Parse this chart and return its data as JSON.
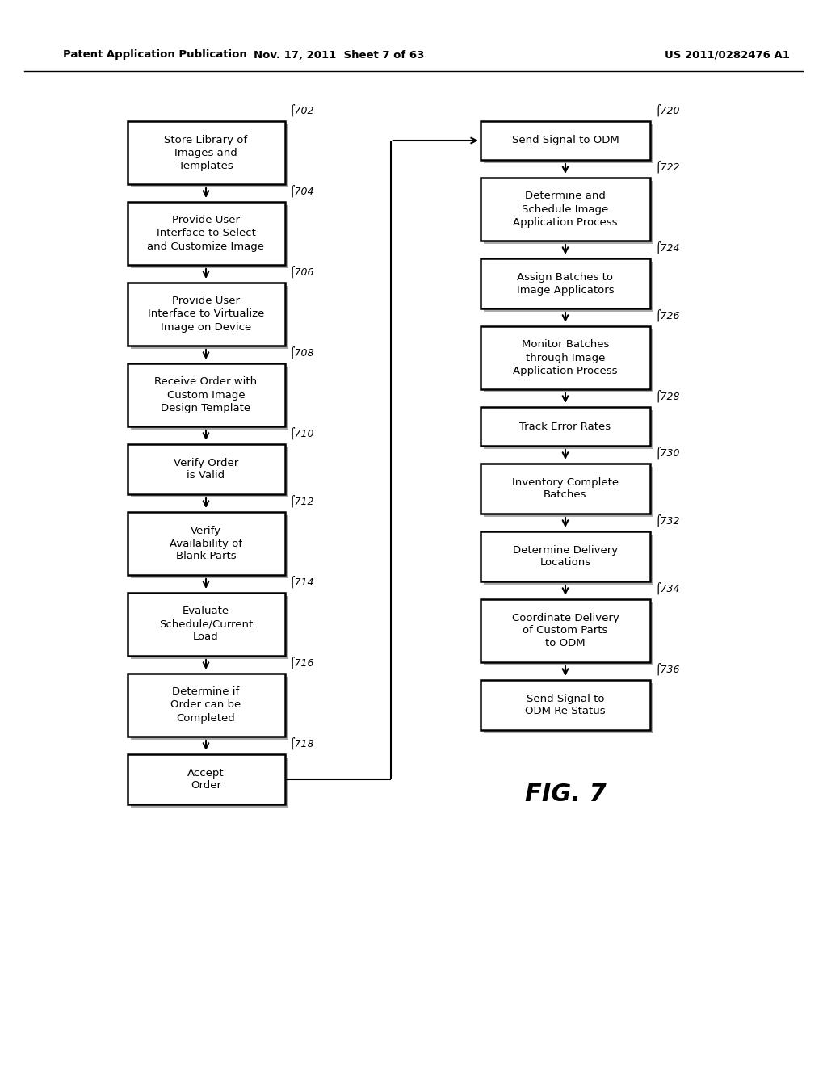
{
  "header_left": "Patent Application Publication",
  "header_mid": "Nov. 17, 2011  Sheet 7 of 63",
  "header_right": "US 2011/0282476 A1",
  "fig_label": "FIG. 7",
  "background": "#ffffff",
  "left_column": [
    {
      "id": "702",
      "text": "Store Library of\nImages and\nTemplates"
    },
    {
      "id": "704",
      "text": "Provide User\nInterface to Select\nand Customize Image"
    },
    {
      "id": "706",
      "text": "Provide User\nInterface to Virtualize\nImage on Device"
    },
    {
      "id": "708",
      "text": "Receive Order with\nCustom Image\nDesign Template"
    },
    {
      "id": "710",
      "text": "Verify Order\nis Valid"
    },
    {
      "id": "712",
      "text": "Verify\nAvailability of\nBlank Parts"
    },
    {
      "id": "714",
      "text": "Evaluate\nSchedule/Current\nLoad"
    },
    {
      "id": "716",
      "text": "Determine if\nOrder can be\nCompleted"
    },
    {
      "id": "718",
      "text": "Accept\nOrder"
    }
  ],
  "right_column": [
    {
      "id": "720",
      "text": "Send Signal to ODM"
    },
    {
      "id": "722",
      "text": "Determine and\nSchedule Image\nApplication Process"
    },
    {
      "id": "724",
      "text": "Assign Batches to\nImage Applicators"
    },
    {
      "id": "726",
      "text": "Monitor Batches\nthrough Image\nApplication Process"
    },
    {
      "id": "728",
      "text": "Track Error Rates"
    },
    {
      "id": "730",
      "text": "Inventory Complete\nBatches"
    },
    {
      "id": "732",
      "text": "Determine Delivery\nLocations"
    },
    {
      "id": "734",
      "text": "Coordinate Delivery\nof Custom Parts\nto ODM"
    },
    {
      "id": "736",
      "text": "Send Signal to\nODM Re Status"
    }
  ]
}
